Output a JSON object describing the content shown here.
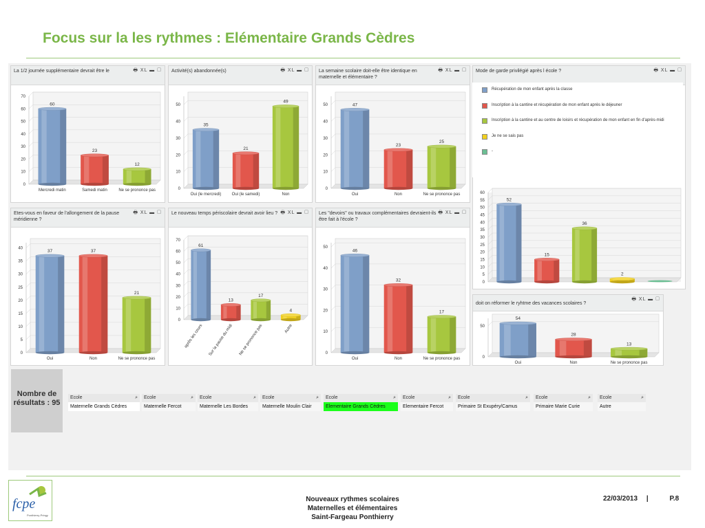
{
  "slide_title": "Focus sur la les rythmes : Elémentaire Grands Cèdres",
  "panel_controls": "🖶 XL ▬ ▢",
  "charts": [
    {
      "id": "c1",
      "title": "La 1/2 journée supplémentaire devrait être le",
      "type": "bar",
      "categories": [
        "Mercredi matin",
        "Samedi matin",
        "Ne se prononce pas"
      ],
      "values": [
        60,
        23,
        12
      ],
      "yticks": [
        0,
        10,
        20,
        30,
        40,
        50,
        60,
        70
      ],
      "ylim": [
        0,
        70
      ],
      "colors": [
        "#7f9fc8",
        "#e2574c",
        "#a7c73f"
      ]
    },
    {
      "id": "c2",
      "title": "Activité(s) abandonnée(s)",
      "type": "bar",
      "categories": [
        "Oui (le mercredi)",
        "Oui (le samedi)",
        "Non"
      ],
      "values": [
        35,
        21,
        49
      ],
      "yticks": [
        0,
        10,
        20,
        30,
        40,
        50
      ],
      "ylim": [
        0,
        55
      ],
      "colors": [
        "#7f9fc8",
        "#e2574c",
        "#a7c73f"
      ]
    },
    {
      "id": "c3",
      "title": "La semaine scolaire doit-elle être identique en maternelle et élémentaire ?",
      "type": "bar",
      "categories": [
        "Oui",
        "Non",
        "Ne se prononce pas"
      ],
      "values": [
        47,
        23,
        25
      ],
      "yticks": [
        0,
        10,
        20,
        30,
        40,
        50
      ],
      "ylim": [
        0,
        55
      ],
      "colors": [
        "#7f9fc8",
        "#e2574c",
        "#a7c73f"
      ]
    },
    {
      "id": "c4",
      "title": "Mode de garde privilégié après l école ?",
      "type": "bar",
      "categories": [
        "",
        "",
        "",
        "",
        ""
      ],
      "values": [
        52,
        15,
        36,
        2,
        0
      ],
      "yticks": [
        0,
        5,
        10,
        15,
        20,
        25,
        30,
        35,
        40,
        45,
        50,
        55,
        60
      ],
      "ylim": [
        0,
        60
      ],
      "colors": [
        "#7f9fc8",
        "#e2574c",
        "#a7c73f",
        "#f1d01f",
        "#6cbf94"
      ],
      "value_labels": [
        "52",
        "15",
        "36",
        "2",
        ""
      ]
    },
    {
      "id": "c5",
      "title": "Etes-vous en faveur de l'allongement de la pause méridienne ?",
      "type": "bar",
      "categories": [
        "Oui",
        "Non",
        "Ne se prononce pas"
      ],
      "values": [
        37,
        37,
        21
      ],
      "yticks": [
        0,
        5,
        10,
        15,
        20,
        25,
        30,
        35,
        40
      ],
      "ylim": [
        0,
        42
      ],
      "colors": [
        "#7f9fc8",
        "#e2574c",
        "#a7c73f"
      ]
    },
    {
      "id": "c6",
      "title": "Le nouveau temps périscolaire devrait avoir lieu ?",
      "type": "bar",
      "categories": [
        "après les cours",
        "Sur la pause du midi",
        "Ne se prononce pas",
        "Autre"
      ],
      "values": [
        61,
        13,
        17,
        4
      ],
      "yticks": [
        0,
        10,
        20,
        30,
        40,
        50,
        60,
        70
      ],
      "ylim": [
        0,
        70
      ],
      "colors": [
        "#7f9fc8",
        "#e2574c",
        "#a7c73f",
        "#f1d01f"
      ],
      "rotate_labels": true
    },
    {
      "id": "c7",
      "title": "Les \"devoirs\" ou travaux complémentaires devraient-ils être fait à l'école ?",
      "type": "bar",
      "categories": [
        "Oui",
        "Non",
        "Ne se prononce pas"
      ],
      "values": [
        46,
        32,
        17
      ],
      "yticks": [
        0,
        10,
        20,
        30,
        40,
        50
      ],
      "ylim": [
        0,
        52
      ],
      "colors": [
        "#7f9fc8",
        "#e2574c",
        "#a7c73f"
      ]
    },
    {
      "id": "c8",
      "title": "doit on réformer le ryhtme des vacances scolaires ?",
      "type": "bar",
      "categories": [
        "Oui",
        "Non",
        "Ne se prononce pas"
      ],
      "values": [
        54,
        28,
        13
      ],
      "yticks": [
        0,
        50
      ],
      "ylim": [
        0,
        62
      ],
      "colors": [
        "#7f9fc8",
        "#e2574c",
        "#a7c73f"
      ]
    }
  ],
  "legend": [
    {
      "label": "Récupération de mon enfant après la classe",
      "color": "#7f9fc8"
    },
    {
      "label": "Inscription à la cantine et récupération de mon enfant après le déjeuner",
      "color": "#e2574c"
    },
    {
      "label": "Inscription à la cantine et au centre de loisirs et récupération de mon enfant en fin d'après-midi",
      "color": "#a7c73f"
    },
    {
      "label": "Je ne se sais pas",
      "color": "#f1d01f"
    },
    {
      "label": "-",
      "color": "#6cbf94"
    }
  ],
  "results": {
    "line1": "Nombre de",
    "line2": "résultats : 95"
  },
  "selectors": [
    {
      "header": "Ecole",
      "value": "Maternelle Grands Cèdres",
      "state": "plain"
    },
    {
      "header": "Ecole",
      "value": "Maternelle Fercot",
      "state": "normal"
    },
    {
      "header": "Ecole",
      "value": "Maternelle Les Bordes",
      "state": "normal"
    },
    {
      "header": "Ecole",
      "value": "Maternelle Moulin Clair",
      "state": "normal"
    },
    {
      "header": "Ecole",
      "value": "Elementaire Grands Cèdres",
      "state": "on"
    },
    {
      "header": "Ecole",
      "value": "Elementaire Fercot",
      "state": "normal"
    },
    {
      "header": "Ecole",
      "value": "Primaire St Exupéry/Camus",
      "state": "normal"
    },
    {
      "header": "Ecole",
      "value": "Primaire Marie Curie",
      "state": "normal"
    },
    {
      "header": "Ecole",
      "value": "Autre",
      "state": "normal"
    }
  ],
  "selector_icon": "⌕",
  "logo": {
    "text": "fcpe",
    "subtext": "Ponthierry-Pringy"
  },
  "footer": {
    "line1": "Nouveaux rythmes scolaires",
    "line2": "Maternelles et élémentaires",
    "line3": "Saint-Fargeau Ponthierry",
    "date": "22/03/2013",
    "sep": "|",
    "page": "P.8"
  },
  "chart_data": [
    {
      "type": "bar",
      "title": "La 1/2 journée supplémentaire devrait être le",
      "categories": [
        "Mercredi matin",
        "Samedi matin",
        "Ne se prononce pas"
      ],
      "values": [
        60,
        23,
        12
      ],
      "ylim": [
        0,
        70
      ]
    },
    {
      "type": "bar",
      "title": "Activité(s) abandonnée(s)",
      "categories": [
        "Oui (le mercredi)",
        "Oui (le samedi)",
        "Non"
      ],
      "values": [
        35,
        21,
        49
      ],
      "ylim": [
        0,
        55
      ]
    },
    {
      "type": "bar",
      "title": "La semaine scolaire doit-elle être identique en maternelle et élémentaire ?",
      "categories": [
        "Oui",
        "Non",
        "Ne se prononce pas"
      ],
      "values": [
        47,
        23,
        25
      ],
      "ylim": [
        0,
        55
      ]
    },
    {
      "type": "bar",
      "title": "Mode de garde privilégié après l école ?",
      "categories": [
        "Récupération de mon enfant après la classe",
        "Inscription à la cantine et récupération de mon enfant après le déjeuner",
        "Inscription à la cantine et au centre de loisirs et récupération de mon enfant en fin d'après-midi",
        "Je ne se sais pas",
        "-"
      ],
      "values": [
        52,
        15,
        36,
        2,
        0
      ],
      "ylim": [
        0,
        60
      ]
    },
    {
      "type": "bar",
      "title": "Etes-vous en faveur de l'allongement de la pause méridienne ?",
      "categories": [
        "Oui",
        "Non",
        "Ne se prononce pas"
      ],
      "values": [
        37,
        37,
        21
      ],
      "ylim": [
        0,
        42
      ]
    },
    {
      "type": "bar",
      "title": "Le nouveau temps périscolaire devrait avoir lieu ?",
      "categories": [
        "après les cours",
        "Sur la pause du midi",
        "Ne se prononce pas",
        "Autre"
      ],
      "values": [
        61,
        13,
        17,
        4
      ],
      "ylim": [
        0,
        70
      ]
    },
    {
      "type": "bar",
      "title": "Les \"devoirs\" ou travaux complémentaires devraient-ils être fait à l'école ?",
      "categories": [
        "Oui",
        "Non",
        "Ne se prononce pas"
      ],
      "values": [
        46,
        32,
        17
      ],
      "ylim": [
        0,
        52
      ]
    },
    {
      "type": "bar",
      "title": "doit on réformer le ryhtme des vacances scolaires ?",
      "categories": [
        "Oui",
        "Non",
        "Ne se prononce pas"
      ],
      "values": [
        54,
        28,
        13
      ],
      "ylim": [
        0,
        62
      ]
    }
  ]
}
